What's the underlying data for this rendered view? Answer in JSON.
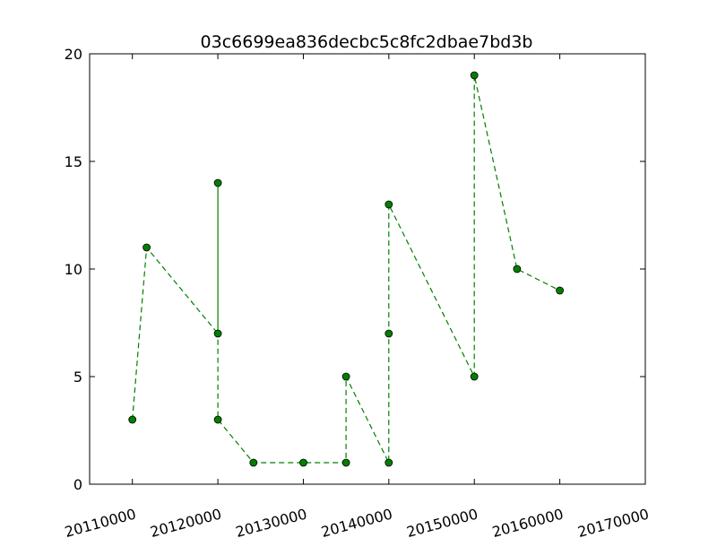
{
  "chart_data": {
    "type": "line",
    "title": "03c6699ea836decbc5c8fc2dbae7bd3b",
    "xlabel": "",
    "ylabel": "",
    "xlim": [
      20105000,
      20170000
    ],
    "ylim": [
      0,
      20
    ],
    "x_ticks": [
      20110000,
      20120000,
      20130000,
      20140000,
      20150000,
      20160000,
      20170000
    ],
    "x_tick_labels": [
      "20110000",
      "20120000",
      "20130000",
      "20140000",
      "20150000",
      "20160000",
      "20170000"
    ],
    "y_ticks": [
      0,
      5,
      10,
      15,
      20
    ],
    "y_tick_labels": [
      "0",
      "5",
      "10",
      "15",
      "20"
    ],
    "grid": false,
    "series": [
      {
        "line_style": "dashed",
        "marker": "circle",
        "color": "#007f00",
        "marker_edge_color": "#000000",
        "x": [
          20110101,
          20110301,
          20120101,
          20120101,
          20120101,
          20120601,
          20130101,
          20130701,
          20130701,
          20140101,
          20140101,
          20140101,
          20150101,
          20150101,
          20150701,
          20160101
        ],
        "y": [
          3,
          11,
          7,
          14,
          3,
          1,
          1,
          1,
          5,
          1,
          7,
          13,
          5,
          19,
          10,
          9
        ]
      }
    ]
  }
}
